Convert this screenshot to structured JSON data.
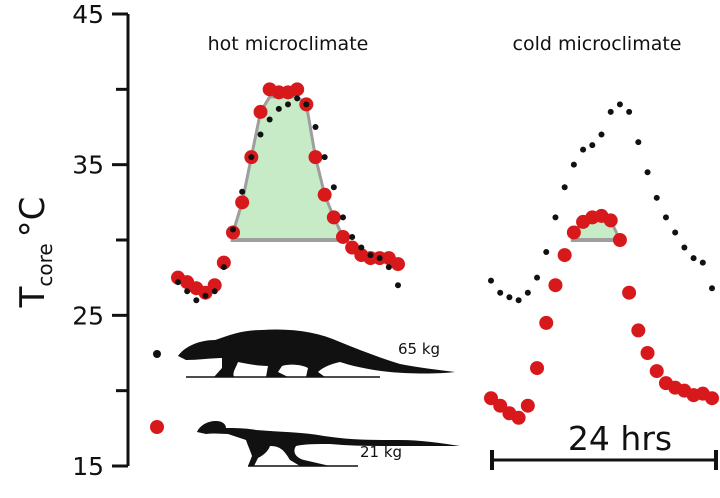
{
  "chart_data": {
    "type": "scatter",
    "ylabel_main": "T",
    "ylabel_sub": "core",
    "ylabel_unit": "°C",
    "ylim": [
      15,
      45
    ],
    "yticks": [
      15,
      25,
      35,
      45
    ],
    "scale_bar_label": "24 hrs",
    "colors": {
      "black_series": "#111111",
      "red_series": "#d7191c",
      "fill": "#c6ebc6",
      "baseline": "#9e9e9e"
    },
    "legend": [
      {
        "marker": "black",
        "mass_label": "65 kg",
        "silhouette": "monitor-lizard-silhouette"
      },
      {
        "marker": "red",
        "mass_label": "21 kg",
        "silhouette": "small-theropod-silhouette"
      }
    ],
    "panels": [
      {
        "title": "hot microclimate",
        "baseline": 30,
        "fill_peak": 39.5,
        "series": [
          {
            "color": "black",
            "x": [
              0,
              1,
              2,
              3,
              4,
              5,
              6,
              7,
              8,
              9,
              10,
              11,
              12,
              13,
              14,
              15,
              16,
              17,
              18,
              19,
              20,
              21,
              22,
              23,
              24
            ],
            "values": [
              27.2,
              26.6,
              26.0,
              26.3,
              26.6,
              28.2,
              30.7,
              33.2,
              35.5,
              37.0,
              38.0,
              38.7,
              39.0,
              39.4,
              39.0,
              37.5,
              35.5,
              33.5,
              31.5,
              30.2,
              29.5,
              29.0,
              28.8,
              28.2,
              27.0
            ]
          },
          {
            "color": "red",
            "x": [
              0,
              1,
              2,
              3,
              4,
              5,
              6,
              7,
              8,
              9,
              10,
              11,
              12,
              13,
              14,
              15,
              16,
              17,
              18,
              19,
              20,
              21,
              22,
              23,
              24
            ],
            "values": [
              27.5,
              27.2,
              26.8,
              26.5,
              27.0,
              28.5,
              30.5,
              32.5,
              35.5,
              38.5,
              40.0,
              39.8,
              39.8,
              40.0,
              39.0,
              35.5,
              33.0,
              31.5,
              30.2,
              29.5,
              29.0,
              28.8,
              28.8,
              28.8,
              28.4
            ]
          }
        ]
      },
      {
        "title": "cold microclimate",
        "baseline": 30,
        "fill_peak": 31.5,
        "series": [
          {
            "color": "black",
            "x": [
              0,
              1,
              2,
              3,
              4,
              5,
              6,
              7,
              8,
              9,
              10,
              11,
              12,
              13,
              14,
              15,
              16,
              17,
              18,
              19,
              20,
              21,
              22,
              23,
              24
            ],
            "values": [
              27.3,
              26.5,
              26.2,
              26.0,
              26.5,
              27.5,
              29.2,
              31.5,
              33.5,
              35.0,
              36.0,
              36.3,
              37.0,
              38.5,
              39.0,
              38.5,
              36.5,
              34.5,
              32.8,
              31.5,
              30.5,
              29.5,
              28.8,
              28.5,
              26.8
            ]
          },
          {
            "color": "red",
            "x": [
              0,
              1,
              2,
              3,
              4,
              5,
              6,
              7,
              8,
              9,
              10,
              11,
              12,
              13,
              14,
              15,
              16,
              17,
              18,
              19,
              20,
              21,
              22,
              23,
              24
            ],
            "values": [
              19.5,
              19.0,
              18.5,
              18.2,
              19.0,
              21.5,
              24.5,
              27.0,
              29.0,
              30.5,
              31.2,
              31.5,
              31.6,
              31.3,
              30.0,
              26.5,
              24.0,
              22.5,
              21.3,
              20.5,
              20.2,
              20.0,
              19.7,
              19.8,
              19.5
            ]
          }
        ]
      }
    ]
  }
}
